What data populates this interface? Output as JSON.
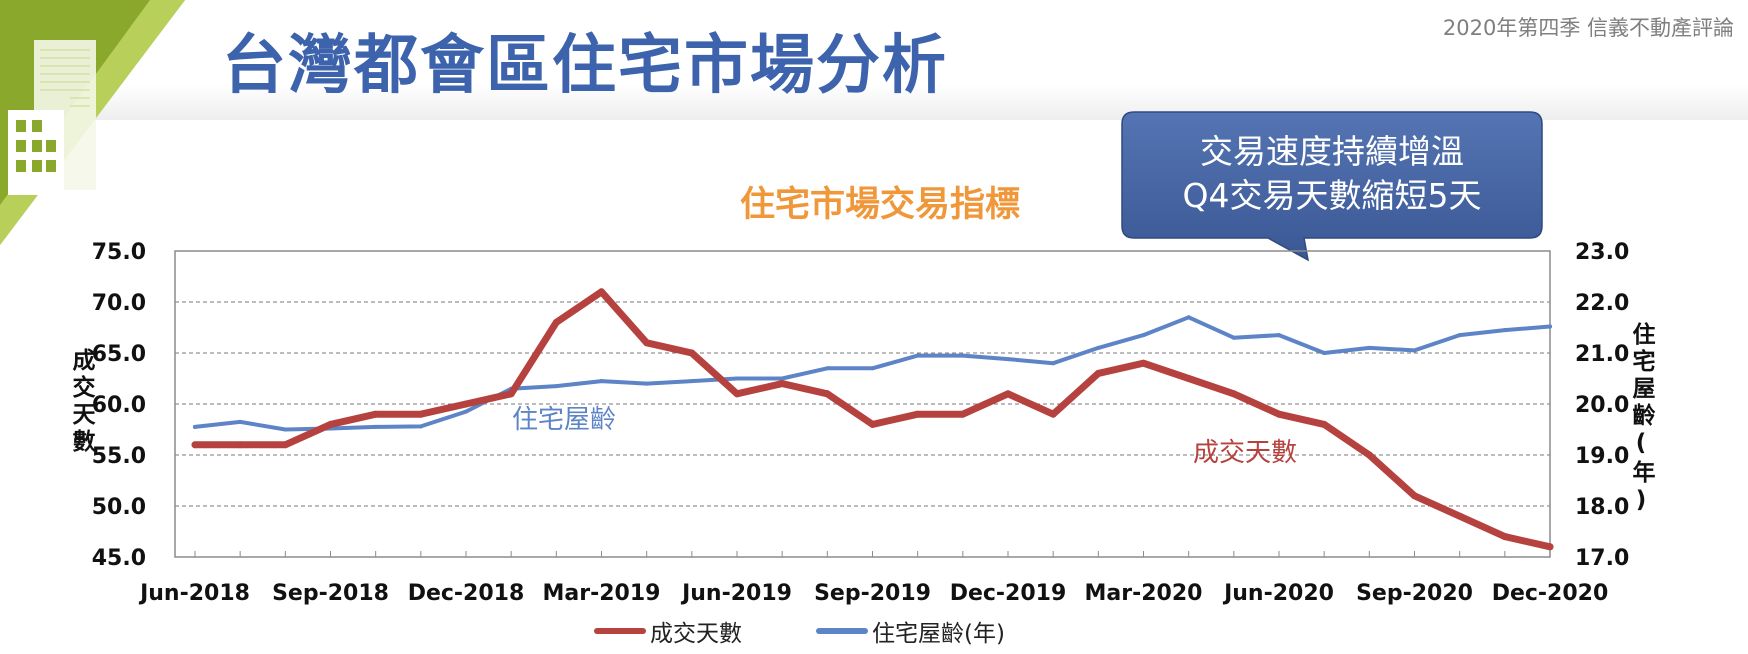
{
  "header": {
    "title": "台灣都會區住宅市場分析",
    "report_tag": "2020年第四季  信義不動產評論"
  },
  "callout": {
    "line1": "交易速度持續增溫",
    "line2": "Q4交易天數縮短5天"
  },
  "colors": {
    "title": "#3d63ad",
    "chart_title": "#f0973a",
    "days_series": "#b5423f",
    "age_series": "#5d84c6",
    "callout_fill": "#3f5f9c",
    "logo_green": "#8aa82c"
  },
  "chart_data": {
    "type": "line",
    "title": "住宅市場交易指標",
    "x_tick_labels": [
      "Jun-2018",
      "Sep-2018",
      "Dec-2018",
      "Mar-2019",
      "Jun-2019",
      "Sep-2019",
      "Dec-2019",
      "Mar-2020",
      "Jun-2020",
      "Sep-2020",
      "Dec-2020"
    ],
    "x": [
      "Jun-2018",
      "Jul-2018",
      "Aug-2018",
      "Sep-2018",
      "Oct-2018",
      "Nov-2018",
      "Dec-2018",
      "Jan-2019",
      "Feb-2019",
      "Mar-2019",
      "Apr-2019",
      "May-2019",
      "Jun-2019",
      "Jul-2019",
      "Aug-2019",
      "Sep-2019",
      "Oct-2019",
      "Nov-2019",
      "Dec-2019",
      "Jan-2020",
      "Feb-2020",
      "Mar-2020",
      "Apr-2020",
      "May-2020",
      "Jun-2020",
      "Jul-2020",
      "Aug-2020",
      "Sep-2020",
      "Oct-2020",
      "Nov-2020",
      "Dec-2020"
    ],
    "left_axis": {
      "label": "成交天數",
      "ylim": [
        45.0,
        75.0
      ],
      "ticks": [
        "45.0",
        "50.0",
        "55.0",
        "60.0",
        "65.0",
        "70.0",
        "75.0"
      ]
    },
    "right_axis": {
      "label": "住宅屋齡(年)",
      "ylim": [
        17.0,
        23.0
      ],
      "ticks": [
        "17.0",
        "18.0",
        "19.0",
        "20.0",
        "21.0",
        "22.0",
        "23.0"
      ]
    },
    "series": [
      {
        "name": "成交天數",
        "axis": "left",
        "inline_label": "成交天數",
        "values": [
          56,
          56,
          56,
          58,
          59,
          59,
          60,
          61,
          68,
          71,
          66,
          65,
          61,
          62,
          61,
          58,
          59,
          59,
          61,
          59,
          63,
          64,
          62.5,
          61,
          59,
          58,
          55,
          51,
          49,
          47,
          46
        ]
      },
      {
        "name": "住宅屋齡(年)",
        "axis": "right",
        "inline_label": "住宅屋齡",
        "values": [
          19.55,
          19.65,
          19.5,
          19.52,
          19.55,
          19.56,
          19.85,
          20.3,
          20.35,
          20.45,
          20.4,
          20.45,
          20.5,
          20.5,
          20.7,
          20.7,
          20.95,
          20.95,
          20.88,
          20.8,
          21.1,
          21.35,
          21.7,
          21.3,
          21.35,
          21.0,
          21.1,
          21.05,
          21.35,
          21.45,
          21.52
        ]
      }
    ],
    "grid": "dashed horizontal",
    "legend": "bottom-center"
  }
}
